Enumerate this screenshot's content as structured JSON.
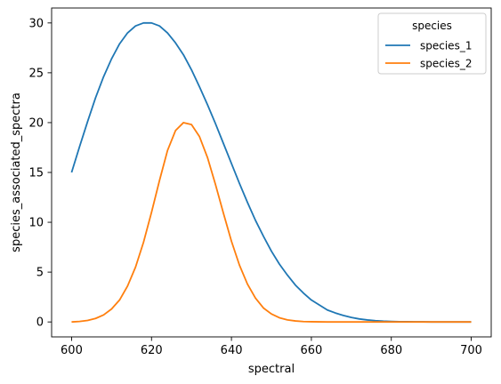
{
  "chart_data": {
    "type": "line",
    "title": "",
    "xlabel": "spectral",
    "ylabel": "species_associated_spectra",
    "xlim": [
      595,
      705
    ],
    "ylim": [
      -1.5,
      31.5
    ],
    "xticks": [
      600,
      620,
      640,
      660,
      680,
      700
    ],
    "yticks": [
      0,
      5,
      10,
      15,
      20,
      25,
      30
    ],
    "grid": false,
    "legend": {
      "title": "species",
      "placement": "top-right"
    },
    "x": [
      600,
      602,
      604,
      606,
      608,
      610,
      612,
      614,
      616,
      618,
      620,
      622,
      624,
      626,
      628,
      630,
      632,
      634,
      636,
      638,
      640,
      642,
      644,
      646,
      648,
      650,
      652,
      654,
      656,
      658,
      660,
      662,
      664,
      666,
      668,
      670,
      672,
      674,
      676,
      678,
      680,
      682,
      684,
      686,
      688,
      690,
      692,
      694,
      696,
      698,
      700
    ],
    "series": [
      {
        "name": "species_1",
        "color": "#1f77b4",
        "values": [
          15.0,
          17.6,
          20.1,
          22.5,
          24.6,
          26.4,
          27.9,
          29.0,
          29.7,
          30.0,
          30.0,
          29.7,
          29.0,
          28.0,
          26.8,
          25.3,
          23.6,
          21.8,
          19.9,
          17.9,
          15.9,
          13.9,
          12.0,
          10.2,
          8.6,
          7.1,
          5.8,
          4.7,
          3.7,
          2.9,
          2.2,
          1.7,
          1.2,
          0.9,
          0.65,
          0.45,
          0.3,
          0.2,
          0.13,
          0.08,
          0.05,
          0.03,
          0.02,
          0.01,
          0.01,
          0.0,
          0.0,
          0.0,
          0.0,
          0.0,
          0.0
        ]
      },
      {
        "name": "species_2",
        "color": "#ff7f0e",
        "values": [
          0.0,
          0.05,
          0.15,
          0.35,
          0.7,
          1.3,
          2.2,
          3.6,
          5.5,
          8.0,
          11.0,
          14.2,
          17.2,
          19.2,
          20.0,
          19.8,
          18.6,
          16.5,
          13.8,
          10.9,
          8.1,
          5.7,
          3.8,
          2.4,
          1.4,
          0.8,
          0.42,
          0.21,
          0.1,
          0.04,
          0.02,
          0.01,
          0.0,
          0.0,
          0.0,
          0.0,
          0.0,
          0.0,
          0.0,
          0.0,
          0.0,
          0.0,
          0.0,
          0.0,
          0.0,
          0.0,
          0.0,
          0.0,
          0.0,
          0.0,
          0.0
        ]
      }
    ]
  }
}
